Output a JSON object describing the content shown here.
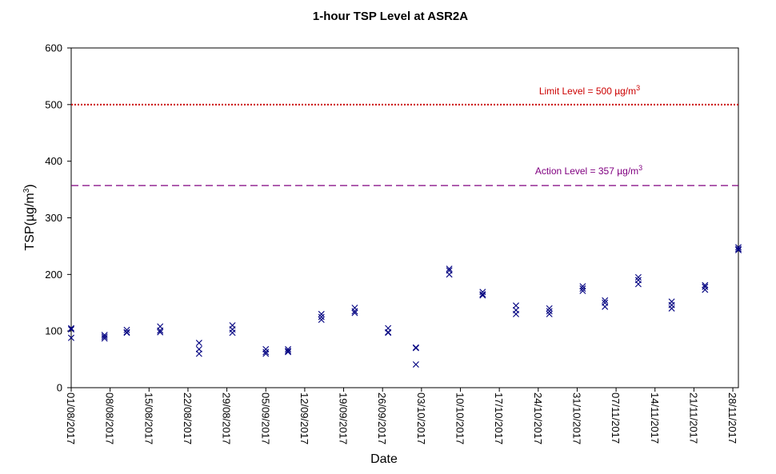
{
  "chart_data": {
    "type": "scatter",
    "title": "1-hour TSP Level at ASR2A",
    "xlabel": "Date",
    "ylabel": "TSP(µg/m3)",
    "ylabel_parts": {
      "base": "TSP(µg/m",
      "sup": "3",
      "end": ")"
    },
    "ylim": [
      0,
      600
    ],
    "yticks": [
      0,
      100,
      200,
      300,
      400,
      500,
      600
    ],
    "xlim": [
      "2017-08-01",
      "2017-11-29"
    ],
    "xtick_labels": [
      "01/08/2017",
      "08/08/2017",
      "15/08/2017",
      "22/08/2017",
      "29/08/2017",
      "05/09/2017",
      "12/09/2017",
      "19/09/2017",
      "26/09/2017",
      "03/10/2017",
      "10/10/2017",
      "17/10/2017",
      "24/10/2017",
      "31/10/2017",
      "07/11/2017",
      "14/11/2017",
      "21/11/2017",
      "28/11/2017"
    ],
    "grid": false,
    "marker": "x",
    "marker_color": "#000080",
    "reference_lines": [
      {
        "label": "Limit Level = 500 µg/m3",
        "base": "Limit Level = 500 µg/m",
        "sup": "3",
        "value": 500,
        "color": "#cc0000",
        "style": "dotted"
      },
      {
        "label": "Action Level = 357 µg/m3",
        "base": "Action Level = 357 µg/m",
        "sup": "3",
        "value": 357,
        "color": "#800080",
        "style": "dashed"
      }
    ],
    "points": [
      {
        "x": "2017-08-01",
        "y": [
          105,
          103,
          88
        ]
      },
      {
        "x": "2017-08-07",
        "y": [
          93,
          90,
          87
        ]
      },
      {
        "x": "2017-08-11",
        "y": [
          102,
          98,
          97
        ]
      },
      {
        "x": "2017-08-17",
        "y": [
          108,
          101,
          98
        ]
      },
      {
        "x": "2017-08-24",
        "y": [
          79,
          68,
          60
        ]
      },
      {
        "x": "2017-08-30",
        "y": [
          110,
          103,
          97
        ]
      },
      {
        "x": "2017-09-05",
        "y": [
          68,
          63,
          60
        ]
      },
      {
        "x": "2017-09-09",
        "y": [
          68,
          65,
          63
        ]
      },
      {
        "x": "2017-09-15",
        "y": [
          130,
          125,
          120
        ]
      },
      {
        "x": "2017-09-21",
        "y": [
          141,
          135,
          132
        ]
      },
      {
        "x": "2017-09-27",
        "y": [
          105,
          98,
          97
        ]
      },
      {
        "x": "2017-10-02",
        "y": [
          71,
          70,
          41
        ]
      },
      {
        "x": "2017-10-08",
        "y": [
          210,
          207,
          200
        ]
      },
      {
        "x": "2017-10-14",
        "y": [
          169,
          165,
          163
        ]
      },
      {
        "x": "2017-10-20",
        "y": [
          145,
          137,
          130
        ]
      },
      {
        "x": "2017-10-26",
        "y": [
          140,
          135,
          130
        ]
      },
      {
        "x": "2017-11-01",
        "y": [
          179,
          175,
          171
        ]
      },
      {
        "x": "2017-11-05",
        "y": [
          154,
          150,
          143
        ]
      },
      {
        "x": "2017-11-11",
        "y": [
          195,
          190,
          183
        ]
      },
      {
        "x": "2017-11-17",
        "y": [
          152,
          146,
          140
        ]
      },
      {
        "x": "2017-11-23",
        "y": [
          181,
          178,
          173
        ]
      },
      {
        "x": "2017-11-29",
        "y": [
          248,
          245,
          243
        ]
      }
    ]
  }
}
